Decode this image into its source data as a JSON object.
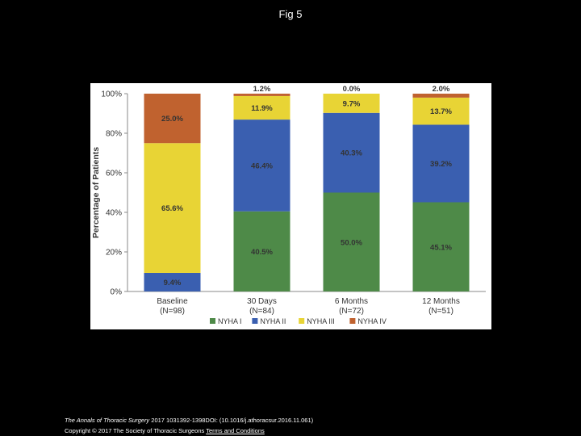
{
  "slide": {
    "title": "Fig 5"
  },
  "footer": {
    "journal": "The Annals of Thoracic Surgery",
    "citation": "2017 1031392-1398DOI: (10.1016/j.athoracsur.2016.11.061)",
    "copyright": "Copyright © 2017 The Society of Thoracic Surgeons",
    "terms": "Terms and Conditions"
  },
  "chart_data": {
    "type": "bar",
    "stacked": true,
    "ylabel": "Percentage of Patients",
    "xlabel": "",
    "ylim": [
      0,
      100
    ],
    "y_ticks": [
      "0%",
      "20%",
      "40%",
      "60%",
      "80%",
      "100%"
    ],
    "y_tick_values": [
      0,
      20,
      40,
      60,
      80,
      100
    ],
    "categories": [
      {
        "name": "Baseline",
        "n": "(N=98)"
      },
      {
        "name": "30 Days",
        "n": "(N=84)"
      },
      {
        "name": "6 Months",
        "n": "(N=72)"
      },
      {
        "name": "12 Months",
        "n": "(N=51)"
      }
    ],
    "series": [
      {
        "name": "NYHA I",
        "color": "#4e8a48",
        "values": [
          0,
          40.5,
          50.0,
          45.1
        ],
        "labels": [
          "",
          "40.5%",
          "50.0%",
          "45.1%"
        ]
      },
      {
        "name": "NYHA II",
        "color": "#3a5fb0",
        "values": [
          9.4,
          46.4,
          40.3,
          39.2
        ],
        "labels": [
          "9.4%",
          "46.4%",
          "40.3%",
          "39.2%"
        ]
      },
      {
        "name": "NYHA III",
        "color": "#e8d435",
        "values": [
          65.6,
          11.9,
          9.7,
          13.7
        ],
        "labels": [
          "65.6%",
          "11.9%",
          "9.7%",
          "13.7%"
        ]
      },
      {
        "name": "NYHA IV",
        "color": "#c0622f",
        "values": [
          25.0,
          1.2,
          0.0,
          2.0
        ],
        "labels": [
          "25.0%",
          "1.2%",
          "0.0%",
          "2.0%"
        ]
      }
    ],
    "legend": {
      "placement": "bottom"
    }
  }
}
